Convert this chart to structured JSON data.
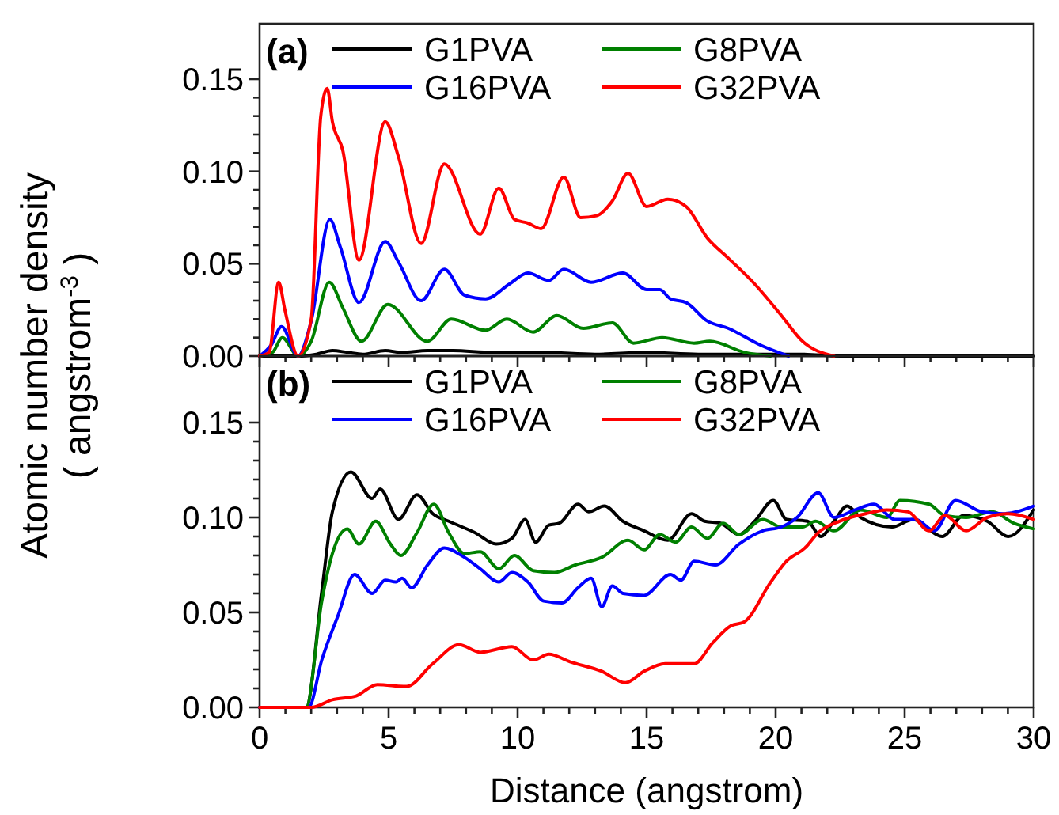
{
  "chart_data": [
    {
      "type": "line",
      "annotations": [
        "(a)"
      ],
      "ylabel": "Atomic number density\n( angstrom$^{-3}$ )",
      "legend": "top",
      "tick_labels": "y",
      "xlim": [
        0,
        30
      ],
      "ylim": [
        0,
        0.18
      ],
      "xticks": [
        0,
        {
          "value": 1,
          "label": null
        },
        {
          "value": 2,
          "label": null
        },
        {
          "value": 3,
          "label": null
        },
        {
          "value": 4,
          "label": null
        },
        5,
        {
          "value": 6,
          "label": null
        },
        {
          "value": 7,
          "label": null
        },
        {
          "value": 8,
          "label": null
        },
        {
          "value": 9,
          "label": null
        },
        10,
        {
          "value": 11,
          "label": null
        },
        {
          "value": 12,
          "label": null
        },
        {
          "value": 13,
          "label": null
        },
        {
          "value": 14,
          "label": null
        },
        15,
        {
          "value": 16,
          "label": null
        },
        {
          "value": 17,
          "label": null
        },
        {
          "value": 18,
          "label": null
        },
        {
          "value": 19,
          "label": null
        },
        20,
        {
          "value": 21,
          "label": null
        },
        {
          "value": 22,
          "label": null
        },
        {
          "value": 23,
          "label": null
        },
        {
          "value": 24,
          "label": null
        },
        25,
        {
          "value": 26,
          "label": null
        },
        {
          "value": 27,
          "label": null
        },
        {
          "value": 28,
          "label": null
        },
        {
          "value": 29,
          "label": null
        },
        30
      ],
      "yticks": [
        {
          "value": 0,
          "label": "0.00"
        },
        {
          "value": 0.01,
          "label": null
        },
        {
          "value": 0.02,
          "label": null
        },
        {
          "value": 0.03,
          "label": null
        },
        {
          "value": 0.04,
          "label": null
        },
        {
          "value": 0.05,
          "label": "0.05"
        },
        {
          "value": 0.06,
          "label": null
        },
        {
          "value": 0.07,
          "label": null
        },
        {
          "value": 0.08,
          "label": null
        },
        {
          "value": 0.09,
          "label": null
        },
        {
          "value": 0.1,
          "label": "0.10"
        },
        {
          "value": 0.11,
          "label": null
        },
        {
          "value": 0.12,
          "label": null
        },
        {
          "value": 0.13,
          "label": null
        },
        {
          "value": 0.14,
          "label": null
        },
        {
          "value": 0.15,
          "label": "0.15"
        }
      ],
      "series": [
        {
          "name": "G1PVA",
          "color": "#000000",
          "x": [
            0,
            1.49,
            2.2,
            2.82,
            3.4,
            4.0,
            4.87,
            5.5,
            6.5,
            7.5,
            9.0,
            11.0,
            13.0,
            15.0,
            17.0,
            19.0,
            21.0,
            22.5,
            24.0,
            30
          ],
          "values": [
            0,
            0,
            0.001,
            0.003,
            0.002,
            0.001,
            0.003,
            0.002,
            0.003,
            0.003,
            0.002,
            0.002,
            0.001,
            0.002,
            0.001,
            0.001,
            0.001,
            0,
            0,
            0
          ]
        },
        {
          "name": "G8PVA",
          "color": "#008000",
          "x": [
            0,
            0.5,
            0.88,
            1.49,
            2.0,
            2.7,
            3.23,
            3.95,
            4.97,
            6.5,
            7.43,
            8.75,
            9.58,
            10.6,
            11.52,
            12.54,
            13.67,
            14.49,
            15.6,
            16.84,
            17.45,
            18.8,
            19.8
          ],
          "values": [
            0,
            0.002,
            0.01,
            0,
            0.008,
            0.04,
            0.026,
            0.008,
            0.028,
            0.008,
            0.02,
            0.014,
            0.02,
            0.013,
            0.022,
            0.015,
            0.018,
            0.007,
            0.01,
            0.007,
            0.008,
            0.002,
            0
          ]
        },
        {
          "name": "G16PVA",
          "color": "#0000ff",
          "x": [
            0,
            0.45,
            0.85,
            1.49,
            2.0,
            2.72,
            3.13,
            3.85,
            4.87,
            5.38,
            6.26,
            7.16,
            7.94,
            8.76,
            9.68,
            10.4,
            11.21,
            11.79,
            12.85,
            14.08,
            15.0,
            15.51,
            15.92,
            16.53,
            17.35,
            18.17,
            19.4,
            20.5
          ],
          "values": [
            0,
            0.006,
            0.016,
            0,
            0.019,
            0.074,
            0.059,
            0.029,
            0.062,
            0.051,
            0.03,
            0.047,
            0.033,
            0.031,
            0.039,
            0.045,
            0.041,
            0.047,
            0.04,
            0.045,
            0.036,
            0.036,
            0.031,
            0.029,
            0.019,
            0.015,
            0.006,
            0
          ]
        },
        {
          "name": "G32PVA",
          "color": "#ff0000",
          "x": [
            0,
            0.37,
            0.74,
            0.98,
            1.49,
            2.0,
            2.37,
            2.62,
            2.82,
            3.23,
            3.85,
            4.87,
            5.38,
            6.26,
            7.16,
            8.55,
            9.27,
            9.88,
            10.4,
            10.91,
            11.79,
            12.44,
            13.06,
            13.67,
            14.28,
            15.0,
            15.82,
            16.53,
            17.35,
            18.17,
            19.19,
            20.22,
            21.04,
            22.26
          ],
          "values": [
            0,
            0.002,
            0.04,
            0.025,
            0,
            0.02,
            0.13,
            0.145,
            0.127,
            0.111,
            0.052,
            0.127,
            0.108,
            0.061,
            0.104,
            0.066,
            0.091,
            0.074,
            0.072,
            0.069,
            0.097,
            0.075,
            0.076,
            0.084,
            0.099,
            0.081,
            0.085,
            0.081,
            0.064,
            0.053,
            0.039,
            0.022,
            0.008,
            0
          ]
        }
      ]
    },
    {
      "type": "line",
      "annotations": [
        "(b)"
      ],
      "xlabel": "Distance (angstrom)",
      "legend": "top",
      "xlim": [
        0,
        30
      ],
      "ylim": [
        0,
        0.185
      ],
      "xticks": [
        0,
        {
          "value": 1,
          "label": null
        },
        {
          "value": 2,
          "label": null
        },
        {
          "value": 3,
          "label": null
        },
        {
          "value": 4,
          "label": null
        },
        5,
        {
          "value": 6,
          "label": null
        },
        {
          "value": 7,
          "label": null
        },
        {
          "value": 8,
          "label": null
        },
        {
          "value": 9,
          "label": null
        },
        10,
        {
          "value": 11,
          "label": null
        },
        {
          "value": 12,
          "label": null
        },
        {
          "value": 13,
          "label": null
        },
        {
          "value": 14,
          "label": null
        },
        15,
        {
          "value": 16,
          "label": null
        },
        {
          "value": 17,
          "label": null
        },
        {
          "value": 18,
          "label": null
        },
        {
          "value": 19,
          "label": null
        },
        20,
        {
          "value": 21,
          "label": null
        },
        {
          "value": 22,
          "label": null
        },
        {
          "value": 23,
          "label": null
        },
        {
          "value": 24,
          "label": null
        },
        25,
        {
          "value": 26,
          "label": null
        },
        {
          "value": 27,
          "label": null
        },
        {
          "value": 28,
          "label": null
        },
        {
          "value": 29,
          "label": null
        },
        30
      ],
      "yticks": [
        {
          "value": 0,
          "label": "0.00"
        },
        {
          "value": 0.01,
          "label": null
        },
        {
          "value": 0.02,
          "label": null
        },
        {
          "value": 0.03,
          "label": null
        },
        {
          "value": 0.04,
          "label": null
        },
        {
          "value": 0.05,
          "label": "0.05"
        },
        {
          "value": 0.06,
          "label": null
        },
        {
          "value": 0.07,
          "label": null
        },
        {
          "value": 0.08,
          "label": null
        },
        {
          "value": 0.09,
          "label": null
        },
        {
          "value": 0.1,
          "label": "0.10"
        },
        {
          "value": 0.11,
          "label": null
        },
        {
          "value": 0.12,
          "label": null
        },
        {
          "value": 0.13,
          "label": null
        },
        {
          "value": 0.14,
          "label": null
        },
        {
          "value": 0.15,
          "label": "0.15"
        }
      ],
      "series": [
        {
          "name": "G1PVA",
          "color": "#000000",
          "x": [
            0,
            1.8,
            2.41,
            2.82,
            3.54,
            4.36,
            4.67,
            5.38,
            6.1,
            6.71,
            7.33,
            8.35,
            9.17,
            9.78,
            10.29,
            10.7,
            11.21,
            11.62,
            12.34,
            12.75,
            13.36,
            14.08,
            14.9,
            15.82,
            16.74,
            17.25,
            17.86,
            18.58,
            19.19,
            19.91,
            20.42,
            21.24,
            21.75,
            22.26,
            22.77,
            23.29,
            24.51,
            25.33,
            26.46,
            27.28,
            28.2,
            29.02,
            30
          ],
          "values": [
            0,
            0,
            0.061,
            0.103,
            0.124,
            0.11,
            0.115,
            0.099,
            0.112,
            0.102,
            0.098,
            0.092,
            0.086,
            0.089,
            0.099,
            0.087,
            0.096,
            0.097,
            0.107,
            0.103,
            0.106,
            0.098,
            0.093,
            0.088,
            0.102,
            0.098,
            0.097,
            0.091,
            0.098,
            0.109,
            0.099,
            0.098,
            0.09,
            0.098,
            0.106,
            0.1,
            0.095,
            0.099,
            0.09,
            0.101,
            0.098,
            0.09,
            0.104
          ]
        },
        {
          "name": "G8PVA",
          "color": "#008000",
          "x": [
            0,
            1.8,
            2.41,
            2.82,
            3.4,
            3.85,
            4.5,
            5.07,
            5.48,
            6.1,
            6.75,
            7.33,
            7.94,
            8.55,
            9.27,
            9.88,
            10.6,
            11.42,
            12.24,
            13.26,
            14.28,
            14.9,
            15.51,
            16.12,
            16.74,
            17.35,
            17.97,
            18.58,
            19.5,
            20.22,
            21.04,
            21.55,
            22.26,
            23.29,
            24.31,
            24.82,
            25.95,
            26.56,
            27.38,
            28.4,
            29.22,
            30
          ],
          "values": [
            0,
            0,
            0.056,
            0.081,
            0.094,
            0.086,
            0.098,
            0.086,
            0.08,
            0.092,
            0.107,
            0.092,
            0.081,
            0.082,
            0.073,
            0.08,
            0.072,
            0.071,
            0.075,
            0.079,
            0.088,
            0.083,
            0.091,
            0.087,
            0.095,
            0.089,
            0.097,
            0.091,
            0.099,
            0.095,
            0.095,
            0.098,
            0.093,
            0.104,
            0.1,
            0.109,
            0.107,
            0.101,
            0.1,
            0.103,
            0.097,
            0.094
          ]
        },
        {
          "name": "G16PVA",
          "color": "#0000ff",
          "x": [
            0,
            1.9,
            2.41,
            3.03,
            3.68,
            4.36,
            4.87,
            5.28,
            5.52,
            5.89,
            6.51,
            7.16,
            7.94,
            8.55,
            9.27,
            9.78,
            10.4,
            11.01,
            11.72,
            12.34,
            12.85,
            13.26,
            13.67,
            14.08,
            14.9,
            15.92,
            16.33,
            16.84,
            17.66,
            18.58,
            19.5,
            20.22,
            20.83,
            21.65,
            22.26,
            23.08,
            23.8,
            24.62,
            25.43,
            26.15,
            26.97,
            27.99,
            28.81,
            30
          ],
          "values": [
            0,
            0,
            0.025,
            0.048,
            0.07,
            0.06,
            0.067,
            0.066,
            0.068,
            0.063,
            0.075,
            0.084,
            0.079,
            0.073,
            0.066,
            0.071,
            0.066,
            0.056,
            0.055,
            0.063,
            0.068,
            0.053,
            0.064,
            0.06,
            0.059,
            0.07,
            0.067,
            0.077,
            0.075,
            0.086,
            0.093,
            0.095,
            0.1,
            0.113,
            0.1,
            0.104,
            0.107,
            0.099,
            0.099,
            0.093,
            0.109,
            0.103,
            0.102,
            0.106
          ]
        },
        {
          "name": "G32PVA",
          "color": "#ff0000",
          "x": [
            0,
            2.0,
            2.82,
            3.74,
            4.56,
            5.69,
            6.71,
            7.73,
            8.55,
            9.78,
            10.6,
            11.21,
            12.03,
            13.26,
            14.18,
            14.9,
            15.72,
            16.84,
            17.56,
            18.27,
            18.78,
            19.81,
            20.42,
            21.14,
            21.65,
            22.47,
            23.49,
            24.31,
            25.13,
            25.95,
            26.56,
            27.38,
            28.2,
            29.02,
            30
          ],
          "values": [
            0,
            0,
            0.004,
            0.006,
            0.012,
            0.011,
            0.023,
            0.033,
            0.029,
            0.032,
            0.025,
            0.028,
            0.024,
            0.019,
            0.013,
            0.019,
            0.023,
            0.023,
            0.034,
            0.043,
            0.045,
            0.066,
            0.077,
            0.084,
            0.092,
            0.098,
            0.102,
            0.104,
            0.103,
            0.093,
            0.101,
            0.093,
            0.1,
            0.102,
            0.099
          ]
        }
      ]
    }
  ]
}
